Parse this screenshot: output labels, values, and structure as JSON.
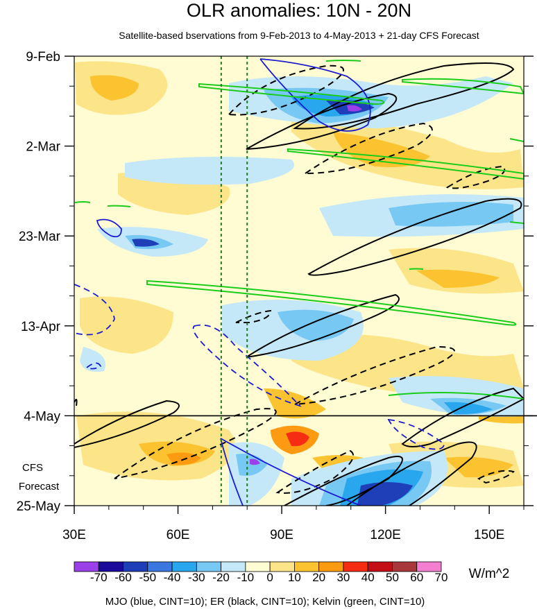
{
  "chart_data": {
    "type": "heatmap",
    "title": "OLR anomalies: 10N - 20N",
    "subtitle": "Satellite-based bservations from 9-Feb-2013 to 4-May-2013 + 21-day CFS Forecast",
    "x_axis": {
      "range_deg_east": [
        30,
        160
      ],
      "tick_labels": [
        "30E",
        "60E",
        "90E",
        "120E",
        "150E"
      ],
      "tick_values": [
        30,
        60,
        90,
        120,
        150
      ]
    },
    "y_axis": {
      "range_days": [
        0,
        105
      ],
      "tick_labels": [
        "9-Feb",
        "2-Mar",
        "23-Mar",
        "13-Apr",
        "4-May",
        "25-May"
      ],
      "tick_values_days": [
        0,
        21,
        42,
        63,
        84,
        105
      ]
    },
    "observation_end_label": "4-May",
    "observation_end_day": 84,
    "forecast_label_line1": "CFS",
    "forecast_label_line2": "Forecast",
    "reference_longitudes": [
      72.5,
      80
    ],
    "colorbar": {
      "levels": [
        -70,
        -60,
        -50,
        -40,
        -30,
        -20,
        -10,
        0,
        10,
        20,
        30,
        40,
        50,
        60,
        70
      ],
      "labels": [
        "-70",
        "-60",
        "-50",
        "-40",
        "-30",
        "-20",
        "-10",
        "0",
        "10",
        "20",
        "30",
        "40",
        "50",
        "60",
        "70"
      ],
      "colors": [
        "#9b40e8",
        "#1a0b9c",
        "#1f3fb8",
        "#3a78e0",
        "#28a6ee",
        "#78c8f4",
        "#c4e8f8",
        "#fffbd2",
        "#fce489",
        "#fcc331",
        "#fc9a12",
        "#f62d13",
        "#c40e16",
        "#a8383b",
        "#f47fd0"
      ],
      "units": "W/m^2"
    },
    "footer": "MJO (blue, CINT=10); ER (black, CINT=10); Kelvin (green, CINT=10)",
    "contour_legend": [
      {
        "name": "MJO",
        "color": "#1a1ad0"
      },
      {
        "name": "ER",
        "color": "#000000"
      },
      {
        "name": "Kelvin",
        "color": "#19cc19"
      }
    ]
  }
}
